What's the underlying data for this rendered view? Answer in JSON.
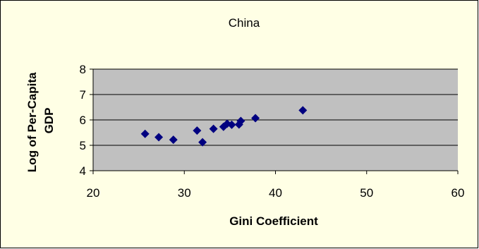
{
  "chart_data": {
    "type": "scatter",
    "title": "China",
    "xlabel": "Gini Coefficient",
    "ylabel": [
      "Log of Per-Capita",
      "GDP"
    ],
    "xlim": [
      20,
      60
    ],
    "ylim": [
      4,
      8
    ],
    "xticks": [
      "20",
      "30",
      "40",
      "50",
      "60"
    ],
    "yticks": [
      "4",
      "5",
      "6",
      "7",
      "8"
    ],
    "grid": "horizontal",
    "legend": "none",
    "marker": "diamond",
    "colors": {
      "marker": "#000080",
      "plot_background": "#C0C0C0",
      "chart_background": "#FFFFE5",
      "gridline": "#000000"
    },
    "points": [
      {
        "x": 25.7,
        "y": 5.45
      },
      {
        "x": 27.2,
        "y": 5.32
      },
      {
        "x": 28.8,
        "y": 5.22
      },
      {
        "x": 31.4,
        "y": 5.58
      },
      {
        "x": 32.0,
        "y": 5.12
      },
      {
        "x": 33.2,
        "y": 5.65
      },
      {
        "x": 34.3,
        "y": 5.73
      },
      {
        "x": 34.7,
        "y": 5.85
      },
      {
        "x": 35.2,
        "y": 5.81
      },
      {
        "x": 36.0,
        "y": 5.82
      },
      {
        "x": 36.2,
        "y": 5.96
      },
      {
        "x": 37.8,
        "y": 6.07
      },
      {
        "x": 43.0,
        "y": 6.38
      }
    ]
  }
}
